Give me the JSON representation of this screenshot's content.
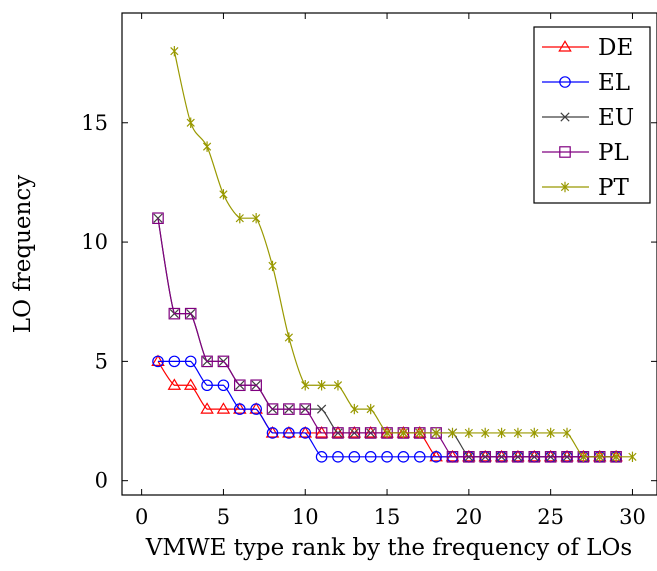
{
  "chart_data": {
    "type": "line",
    "title": "",
    "xlabel": "VMWE type rank by the frequency of LOs",
    "ylabel": "LO frequency",
    "xlim": [
      -1.2,
      31.5
    ],
    "ylim": [
      -0.6,
      19.6
    ],
    "xticks": [
      0,
      5,
      10,
      15,
      20,
      25,
      30
    ],
    "yticks": [
      0,
      5,
      10,
      15
    ],
    "grid": false,
    "legend_position": "top-right",
    "series": [
      {
        "name": "DE",
        "color": "#ff0000",
        "marker": "triangle",
        "x": [
          1,
          2,
          3,
          4,
          5,
          6,
          7,
          8,
          9,
          10,
          11,
          12,
          13,
          14,
          15,
          16,
          17,
          18,
          19,
          20,
          21,
          22,
          23,
          24,
          25,
          26,
          27,
          28,
          29
        ],
        "y": [
          5,
          4,
          4,
          3,
          3,
          3,
          3,
          2,
          2,
          2,
          2,
          2,
          2,
          2,
          2,
          2,
          2,
          1,
          1,
          1,
          1,
          1,
          1,
          1,
          1,
          1,
          1,
          1,
          1
        ]
      },
      {
        "name": "EL",
        "color": "#0000ff",
        "marker": "circle",
        "x": [
          1,
          2,
          3,
          4,
          5,
          6,
          7,
          8,
          9,
          10,
          11,
          12,
          13,
          14,
          15,
          16,
          17,
          18,
          19,
          20,
          21,
          22,
          23,
          24,
          25,
          26,
          27,
          28,
          29
        ],
        "y": [
          5,
          5,
          5,
          4,
          4,
          3,
          3,
          2,
          2,
          2,
          1,
          1,
          1,
          1,
          1,
          1,
          1,
          1,
          1,
          1,
          1,
          1,
          1,
          1,
          1,
          1,
          1,
          1,
          1
        ]
      },
      {
        "name": "EU",
        "color": "#404040",
        "marker": "cross",
        "x": [
          1,
          2,
          3,
          4,
          5,
          6,
          7,
          8,
          9,
          10,
          11,
          12,
          13,
          14,
          15,
          16,
          17,
          18,
          19,
          20,
          21,
          22,
          23,
          24,
          25,
          26,
          27,
          28,
          29
        ],
        "y": [
          11,
          7,
          7,
          5,
          5,
          4,
          4,
          3,
          3,
          3,
          3,
          2,
          2,
          2,
          2,
          2,
          2,
          2,
          2,
          1,
          1,
          1,
          1,
          1,
          1,
          1,
          1,
          1,
          1
        ]
      },
      {
        "name": "PL",
        "color": "#800080",
        "marker": "square",
        "x": [
          1,
          2,
          3,
          4,
          5,
          6,
          7,
          8,
          9,
          10,
          11,
          12,
          13,
          14,
          15,
          16,
          17,
          18,
          19,
          20,
          21,
          22,
          23,
          24,
          25,
          26,
          27,
          28,
          29
        ],
        "y": [
          11,
          7,
          7,
          5,
          5,
          4,
          4,
          3,
          3,
          3,
          2,
          2,
          2,
          2,
          2,
          2,
          2,
          2,
          1,
          1,
          1,
          1,
          1,
          1,
          1,
          1,
          1,
          1,
          1
        ]
      },
      {
        "name": "PT",
        "color": "#999900",
        "marker": "star",
        "x": [
          2,
          3,
          4,
          5,
          6,
          7,
          8,
          9,
          10,
          11,
          12,
          13,
          14,
          15,
          16,
          17,
          18,
          19,
          20,
          21,
          22,
          23,
          24,
          25,
          26,
          27,
          28,
          29,
          30
        ],
        "y": [
          18,
          15,
          14,
          12,
          11,
          11,
          9,
          6,
          4,
          4,
          4,
          3,
          3,
          2,
          2,
          2,
          2,
          2,
          2,
          2,
          2,
          2,
          2,
          2,
          2,
          1,
          1,
          1,
          1
        ]
      }
    ]
  }
}
